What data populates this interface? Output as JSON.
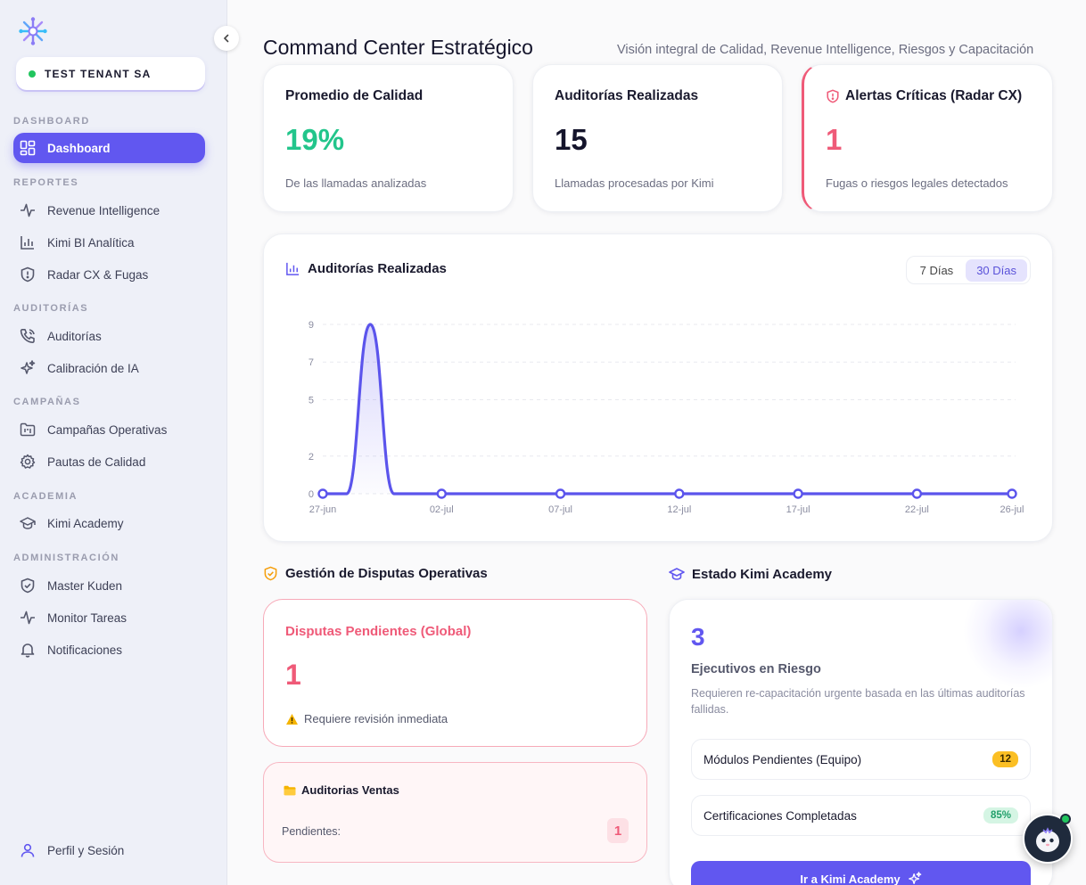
{
  "tenant": {
    "name": "TEST TENANT SA",
    "status_color": "#22c55e"
  },
  "sidebar": {
    "sections": [
      {
        "label": "DASHBOARD",
        "items": [
          {
            "label": "Dashboard",
            "icon": "layout-grid-icon",
            "active": true
          }
        ]
      },
      {
        "label": "REPORTES",
        "items": [
          {
            "label": "Revenue Intelligence",
            "icon": "activity-icon"
          },
          {
            "label": "Kimi BI Analítica",
            "icon": "bar-chart-icon"
          },
          {
            "label": "Radar CX & Fugas",
            "icon": "shield-alert-icon"
          }
        ]
      },
      {
        "label": "AUDITORÍAS",
        "items": [
          {
            "label": "Auditorías",
            "icon": "phone-call-icon"
          },
          {
            "label": "Calibración de IA",
            "icon": "sparkles-icon"
          }
        ]
      },
      {
        "label": "CAMPAÑAS",
        "items": [
          {
            "label": "Campañas Operativas",
            "icon": "folder-kanban-icon"
          },
          {
            "label": "Pautas de Calidad",
            "icon": "settings-icon"
          }
        ]
      },
      {
        "label": "ACADEMIA",
        "items": [
          {
            "label": "Kimi Academy",
            "icon": "graduation-cap-icon"
          }
        ]
      },
      {
        "label": "ADMINISTRACIÓN",
        "items": [
          {
            "label": "Master Kuden",
            "icon": "shield-check-icon"
          },
          {
            "label": "Monitor Tareas",
            "icon": "activity-icon"
          },
          {
            "label": "Notificaciones",
            "icon": "bell-icon"
          }
        ]
      }
    ],
    "profile_label": "Perfil y Sesión"
  },
  "header": {
    "title": "Command Center Estratégico",
    "subtitle": "Visión integral de Calidad, Revenue Intelligence, Riesgos y Capacitación"
  },
  "kpis": {
    "quality": {
      "title": "Promedio de Calidad",
      "value": "19%",
      "desc": "De las llamadas analizadas",
      "color": "#22c58b"
    },
    "audits": {
      "title": "Auditorías Realizadas",
      "value": "15",
      "desc": "Llamadas procesadas por Kimi",
      "color": "#14142b"
    },
    "alerts": {
      "title": "Alertas Críticas (Radar CX)",
      "value": "1",
      "desc": "Fugas o riesgos legales detectados",
      "color": "#ef5a78"
    }
  },
  "chart_section": {
    "title": "Auditorías Realizadas",
    "range_options": [
      "7 Días",
      "30 Días"
    ],
    "selected_range": "30 Días"
  },
  "chart_data": {
    "type": "area",
    "x_labels": [
      "27-jun",
      "02-jul",
      "07-jul",
      "12-jul",
      "17-jul",
      "22-jul",
      "26-jul"
    ],
    "y_ticks": [
      0,
      2,
      5,
      7,
      9
    ],
    "ylim": [
      0,
      9
    ],
    "series": [
      {
        "x": [
          "27-jun",
          "28-jun",
          "29-jun",
          "30-jun",
          "01-jul",
          "02-jul",
          "07-jul",
          "12-jul",
          "17-jul",
          "22-jul",
          "26-jul"
        ],
        "values": [
          0,
          0,
          9,
          0,
          0,
          0,
          0,
          0,
          0,
          0,
          0
        ],
        "markers_at": [
          "27-jun",
          "02-jul",
          "07-jul",
          "12-jul",
          "17-jul",
          "22-jul",
          "26-jul"
        ],
        "color": "#5b54ec"
      }
    ],
    "grid": true
  },
  "disputes": {
    "section_title": "Gestión de Disputas Operativas",
    "pending_title": "Disputas Pendientes (Global)",
    "pending_value": "1",
    "pending_note": "Requiere revisión inmediata",
    "sales_title": "Auditorias Ventas",
    "sales_label": "Pendientes:",
    "sales_count": "1"
  },
  "academy": {
    "section_title": "Estado Kimi Academy",
    "at_risk_value": "3",
    "at_risk_label": "Ejecutivos en Riesgo",
    "at_risk_desc": "Requieren re-capacitación urgente basada en las últimas auditorías fallidas.",
    "rows": [
      {
        "label": "Módulos Pendientes (Equipo)",
        "badge": "12"
      },
      {
        "label": "Certificaciones Completadas",
        "badge": "85%"
      }
    ],
    "cta_label": "Ir a Kimi Academy"
  },
  "colors": {
    "accent": "#6157f0",
    "danger": "#ef5a78",
    "success": "#22c58b"
  }
}
